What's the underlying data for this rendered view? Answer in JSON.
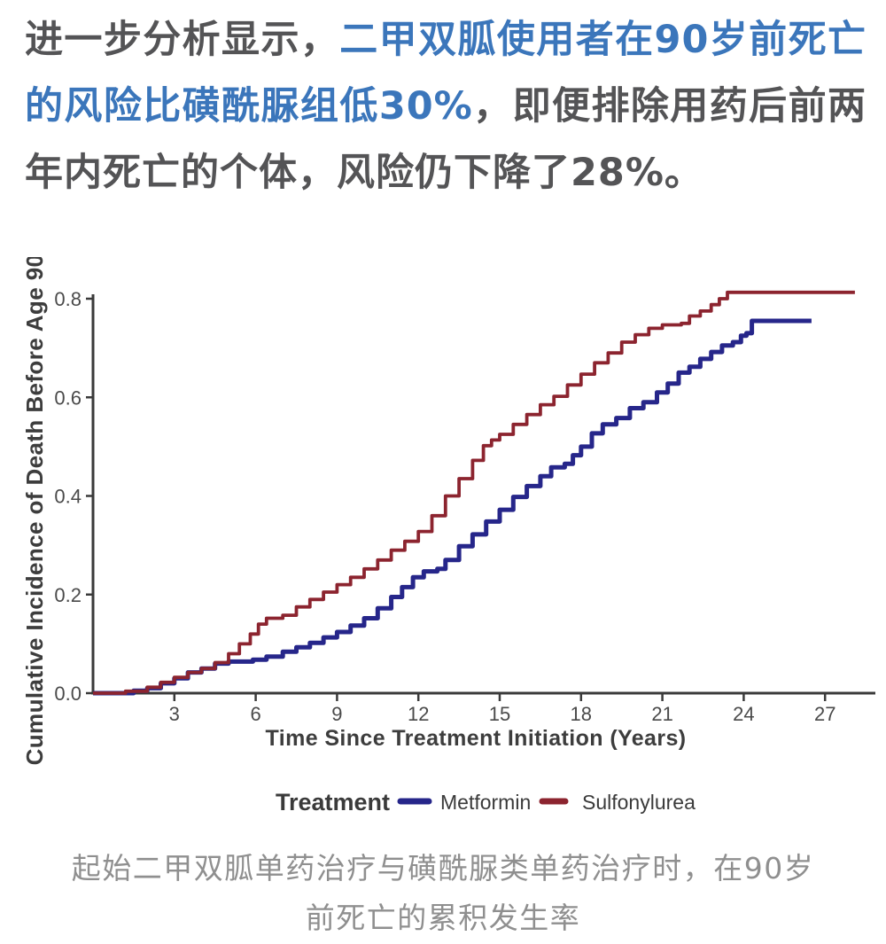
{
  "page": {
    "background": "#ffffff"
  },
  "paragraph": {
    "part1": "进一步分析显示，",
    "part2_highlight": "二甲双胍使用者在90岁前死亡的风险比磺酰脲组低30%",
    "part3": "，即便排除用药后前两年内死亡的个体，风险仍下降了28%。",
    "text_color": "#545456",
    "highlight_color": "#3b76bb"
  },
  "chart_data": {
    "type": "line",
    "step": true,
    "title": "",
    "xlabel": "Time Since Treatment Initiation (Years)",
    "ylabel": "Cumulative Incidence of Death Before Age 90",
    "xlim": [
      0,
      28.9
    ],
    "ylim": [
      0,
      0.8
    ],
    "x_ticks": [
      3,
      6,
      9,
      12,
      15,
      18,
      21,
      24,
      27
    ],
    "y_tick_values": [
      0,
      0.2,
      0.4,
      0.6,
      0.8
    ],
    "y_tick_labels": [
      "0.0",
      "0.2",
      "0.4",
      "0.6",
      "0.8"
    ],
    "grid": false,
    "axis_color": "#3a3a3a",
    "tick_label_color": "#4a4a4a",
    "axis_label_color": "#3d3d3d",
    "legend": {
      "title": "Treatment",
      "position": "bottom"
    },
    "series": [
      {
        "name": "Metformin",
        "color": "#26268a",
        "stroke_width": 5,
        "points": [
          [
            0,
            0
          ],
          [
            1.5,
            0.005
          ],
          [
            2,
            0.01
          ],
          [
            2.5,
            0.02
          ],
          [
            3,
            0.03
          ],
          [
            3.5,
            0.042
          ],
          [
            4,
            0.05
          ],
          [
            4.5,
            0.06
          ],
          [
            5,
            0.064
          ],
          [
            5.9,
            0.068
          ],
          [
            6.4,
            0.074
          ],
          [
            7,
            0.084
          ],
          [
            7.5,
            0.093
          ],
          [
            8,
            0.102
          ],
          [
            8.5,
            0.113
          ],
          [
            9,
            0.124
          ],
          [
            9.5,
            0.137
          ],
          [
            10,
            0.152
          ],
          [
            10.5,
            0.172
          ],
          [
            11,
            0.195
          ],
          [
            11.4,
            0.215
          ],
          [
            11.8,
            0.235
          ],
          [
            12.2,
            0.247
          ],
          [
            12.7,
            0.252
          ],
          [
            13,
            0.27
          ],
          [
            13.5,
            0.298
          ],
          [
            14,
            0.322
          ],
          [
            14.5,
            0.348
          ],
          [
            15,
            0.372
          ],
          [
            15.5,
            0.398
          ],
          [
            16,
            0.42
          ],
          [
            16.5,
            0.44
          ],
          [
            16.9,
            0.458
          ],
          [
            17.4,
            0.465
          ],
          [
            18,
            0.5
          ],
          [
            18.4,
            0.527
          ],
          [
            18.8,
            0.545
          ],
          [
            19.3,
            0.558
          ],
          [
            19.8,
            0.578
          ],
          [
            20.3,
            0.59
          ],
          [
            20.8,
            0.61
          ],
          [
            21.2,
            0.628
          ],
          [
            21.6,
            0.65
          ],
          [
            22,
            0.662
          ],
          [
            22.4,
            0.678
          ],
          [
            22.8,
            0.692
          ],
          [
            23.2,
            0.705
          ],
          [
            23.6,
            0.712
          ],
          [
            23.9,
            0.725
          ],
          [
            24.1,
            0.73
          ],
          [
            24.3,
            0.755
          ],
          [
            26.5,
            0.755
          ]
        ]
      },
      {
        "name": "Sulfonylurea",
        "color": "#8c242f",
        "stroke_width": 3.8,
        "points": [
          [
            0,
            0
          ],
          [
            1.2,
            0.004
          ],
          [
            2,
            0.012
          ],
          [
            2.5,
            0.022
          ],
          [
            3,
            0.032
          ],
          [
            3.5,
            0.042
          ],
          [
            4,
            0.05
          ],
          [
            4.5,
            0.062
          ],
          [
            5,
            0.08
          ],
          [
            5.4,
            0.1
          ],
          [
            5.8,
            0.12
          ],
          [
            6.1,
            0.14
          ],
          [
            6.4,
            0.152
          ],
          [
            7,
            0.158
          ],
          [
            7.5,
            0.175
          ],
          [
            8,
            0.19
          ],
          [
            8.5,
            0.205
          ],
          [
            9,
            0.22
          ],
          [
            9.5,
            0.235
          ],
          [
            10,
            0.252
          ],
          [
            10.5,
            0.27
          ],
          [
            11,
            0.29
          ],
          [
            11.5,
            0.308
          ],
          [
            12,
            0.328
          ],
          [
            12.5,
            0.36
          ],
          [
            13,
            0.4
          ],
          [
            13.5,
            0.435
          ],
          [
            14,
            0.472
          ],
          [
            14.4,
            0.502
          ],
          [
            15,
            0.525
          ],
          [
            15.5,
            0.545
          ],
          [
            16,
            0.565
          ],
          [
            16.5,
            0.585
          ],
          [
            17,
            0.602
          ],
          [
            17.5,
            0.625
          ],
          [
            18,
            0.647
          ],
          [
            18.5,
            0.67
          ],
          [
            19,
            0.69
          ],
          [
            19.5,
            0.712
          ],
          [
            20,
            0.727
          ],
          [
            20.5,
            0.74
          ],
          [
            21,
            0.747
          ],
          [
            21.7,
            0.75
          ],
          [
            22,
            0.765
          ],
          [
            22.4,
            0.775
          ],
          [
            22.8,
            0.788
          ],
          [
            23.1,
            0.8
          ],
          [
            23.4,
            0.813
          ],
          [
            28.1,
            0.813
          ]
        ]
      }
    ]
  },
  "caption": {
    "line1": "起始二甲双胍单药治疗与磺酰脲类单药治疗时，在90岁",
    "line2": "前死亡的累积发生率",
    "color": "#8f8f8f"
  }
}
